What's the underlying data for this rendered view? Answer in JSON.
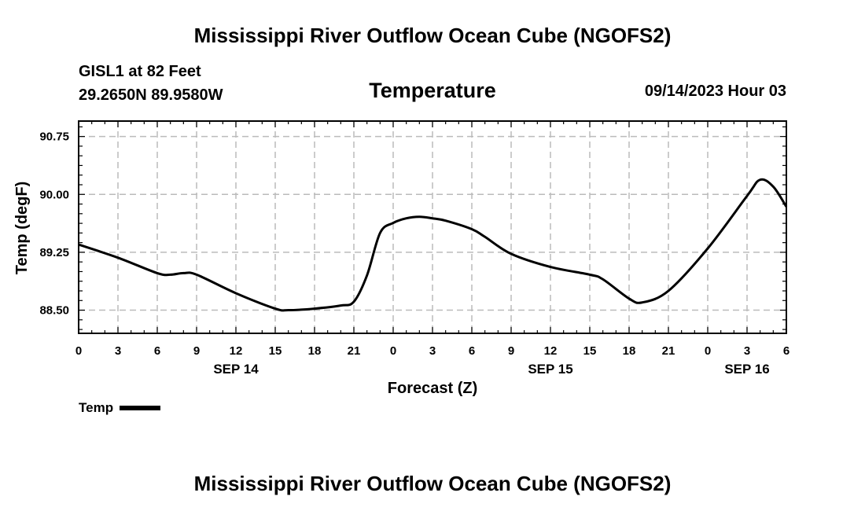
{
  "header": {
    "main_title": "Mississippi River Outflow Ocean Cube (NGOFS2)",
    "station_line": "GISL1 at 82 Feet",
    "coords_line": "29.2650N  89.9580W",
    "subtitle": "Temperature",
    "datetime": "09/14/2023 Hour 03"
  },
  "footer": {
    "main_title": "Mississippi River Outflow Ocean Cube (NGOFS2)"
  },
  "legend": {
    "label": "Temp"
  },
  "chart_data": {
    "type": "line",
    "title": "Temperature",
    "xlabel": "Forecast (Z)",
    "ylabel": "Temp (degF)",
    "xlim": [
      0,
      54
    ],
    "ylim": [
      88.2,
      90.95
    ],
    "grid": true,
    "legend_position": "bottom-left",
    "x_ticks": [
      0,
      3,
      6,
      9,
      12,
      15,
      18,
      21,
      24,
      27,
      30,
      33,
      36,
      39,
      42,
      45,
      48,
      51,
      54
    ],
    "x_tick_labels": [
      "0",
      "3",
      "6",
      "9",
      "12",
      "15",
      "18",
      "21",
      "0",
      "3",
      "6",
      "9",
      "12",
      "15",
      "18",
      "21",
      "0",
      "3",
      "6"
    ],
    "y_ticks": [
      88.5,
      89.25,
      90.0,
      90.75
    ],
    "y_tick_labels": [
      "88.50",
      "89.25",
      "90.00",
      "90.75"
    ],
    "date_labels": [
      {
        "x": 12,
        "label": "SEP 14"
      },
      {
        "x": 36,
        "label": "SEP 15"
      },
      {
        "x": 51,
        "label": "SEP 16"
      }
    ],
    "series": [
      {
        "name": "Temp",
        "x": [
          0,
          3,
          6,
          7,
          8,
          9,
          12,
          15,
          16,
          18,
          20,
          21,
          22,
          23,
          24,
          25,
          26,
          27,
          28,
          30,
          31,
          33,
          36,
          39,
          40,
          42,
          43,
          45,
          48,
          51,
          52,
          53,
          54
        ],
        "values": [
          89.35,
          89.18,
          88.98,
          88.96,
          88.98,
          88.96,
          88.72,
          88.52,
          88.5,
          88.52,
          88.56,
          88.61,
          88.95,
          89.5,
          89.63,
          89.69,
          89.71,
          89.69,
          89.66,
          89.55,
          89.45,
          89.23,
          89.06,
          88.96,
          88.9,
          88.65,
          88.6,
          88.75,
          89.3,
          89.98,
          90.19,
          90.1,
          89.84
        ]
      }
    ]
  }
}
